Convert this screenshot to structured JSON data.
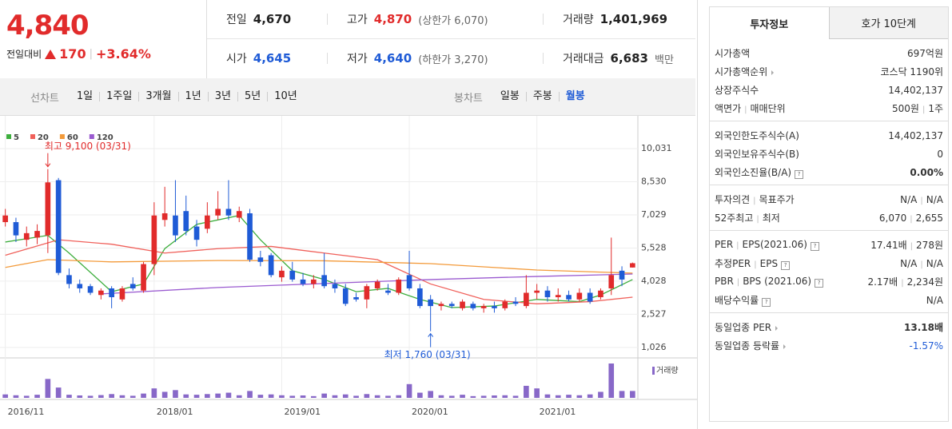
{
  "header": {
    "price": "4,840",
    "change_label": "전일대비",
    "change": "170",
    "change_pct": "+3.64%"
  },
  "quote": [
    [
      {
        "label": "전일",
        "value": "4,670",
        "color": "#222"
      },
      {
        "label": "고가",
        "value": "4,870",
        "note": "(상한가 6,070)",
        "color": "#e12b2b"
      },
      {
        "label": "거래량",
        "value": "1,401,969",
        "color": "#222"
      }
    ],
    [
      {
        "label": "시가",
        "value": "4,645",
        "color": "#1f5bd6"
      },
      {
        "label": "저가",
        "value": "4,640",
        "note": "(하한가 3,270)",
        "color": "#1f5bd6"
      },
      {
        "label": "거래대금",
        "value": "6,683",
        "note": "백만",
        "color": "#222"
      }
    ]
  ],
  "tabs": {
    "line_chart": {
      "label": "선차트",
      "items": [
        "1일",
        "1주일",
        "3개월",
        "1년",
        "3년",
        "5년",
        "10년"
      ]
    },
    "candle_chart": {
      "label": "봉차트",
      "items": [
        "일봉",
        "주봉",
        "월봉"
      ],
      "active": 2
    }
  },
  "chart_data": {
    "type": "candlestick",
    "xlim": [
      -0.5,
      59.5
    ],
    "ylim": [
      660,
      11260
    ],
    "yticks": [
      {
        "value": 10031,
        "label": "10,031"
      },
      {
        "value": 8530,
        "label": "8,530"
      },
      {
        "value": 7029,
        "label": "7,029"
      },
      {
        "value": 5528,
        "label": "5,528"
      },
      {
        "value": 4028,
        "label": "4,028"
      },
      {
        "value": 2527,
        "label": "2,527"
      },
      {
        "value": 1026,
        "label": "1,026"
      }
    ],
    "xticks": [
      {
        "value": 0,
        "label": "2016/11"
      },
      {
        "value": 14,
        "label": "2018/01"
      },
      {
        "value": 26,
        "label": "2019/01"
      },
      {
        "value": 38,
        "label": "2020/01"
      },
      {
        "value": 50,
        "label": "2021/01"
      }
    ],
    "up_color": "#e12b2b",
    "down_color": "#1f5bd6",
    "volume_color": "#8868c8",
    "grid": true,
    "ohlc": [
      [
        6700,
        7300,
        6500,
        7000
      ],
      [
        6700,
        6900,
        5800,
        6100
      ],
      [
        5900,
        6500,
        5600,
        6200
      ],
      [
        6000,
        6600,
        5700,
        6300
      ],
      [
        6100,
        9100,
        5300,
        8500
      ],
      [
        8600,
        8700,
        4300,
        4400
      ],
      [
        4300,
        4600,
        3700,
        3900
      ],
      [
        3900,
        4100,
        3500,
        3700
      ],
      [
        3800,
        3900,
        3400,
        3500
      ],
      [
        3400,
        3700,
        3200,
        3600
      ],
      [
        3700,
        3800,
        2800,
        3300
      ],
      [
        3200,
        3800,
        3100,
        3700
      ],
      [
        3900,
        4200,
        3600,
        3700
      ],
      [
        3600,
        4900,
        3500,
        4800
      ],
      [
        4800,
        7600,
        4300,
        7000
      ],
      [
        6800,
        8300,
        6500,
        7100
      ],
      [
        7000,
        8600,
        5800,
        6100
      ],
      [
        7200,
        7900,
        6100,
        6300
      ],
      [
        6500,
        6800,
        5600,
        5900
      ],
      [
        6400,
        7600,
        6200,
        7000
      ],
      [
        7000,
        8100,
        6800,
        7300
      ],
      [
        7300,
        8600,
        6800,
        7000
      ],
      [
        6900,
        7400,
        6700,
        7200
      ],
      [
        7100,
        7300,
        4900,
        5000
      ],
      [
        5100,
        5400,
        4700,
        4900
      ],
      [
        5200,
        5300,
        4200,
        4300
      ],
      [
        4200,
        4700,
        4000,
        4500
      ],
      [
        4500,
        4900,
        4000,
        4100
      ],
      [
        4100,
        4400,
        3800,
        3900
      ],
      [
        3900,
        4300,
        3700,
        4100
      ],
      [
        4300,
        5300,
        3700,
        3800
      ],
      [
        3900,
        4100,
        3500,
        3700
      ],
      [
        3700,
        3900,
        2900,
        3000
      ],
      [
        3300,
        3500,
        3100,
        3200
      ],
      [
        3200,
        3900,
        2800,
        3800
      ],
      [
        3700,
        4100,
        3600,
        4000
      ],
      [
        3600,
        3900,
        3400,
        3500
      ],
      [
        3500,
        4200,
        3400,
        4100
      ],
      [
        4300,
        5400,
        3600,
        3700
      ],
      [
        3700,
        3900,
        2800,
        2900
      ],
      [
        3200,
        3400,
        1760,
        2900
      ],
      [
        2900,
        3100,
        2700,
        3000
      ],
      [
        3000,
        3100,
        2800,
        2900
      ],
      [
        2800,
        3200,
        2700,
        3100
      ],
      [
        3000,
        3100,
        2700,
        2800
      ],
      [
        2800,
        3000,
        2600,
        2900
      ],
      [
        2900,
        3100,
        2600,
        2800
      ],
      [
        2800,
        3200,
        2700,
        3100
      ],
      [
        3100,
        3300,
        2900,
        3000
      ],
      [
        2900,
        4300,
        2800,
        3500
      ],
      [
        3500,
        3900,
        3200,
        3600
      ],
      [
        3600,
        3800,
        3100,
        3300
      ],
      [
        3300,
        3700,
        3100,
        3400
      ],
      [
        3400,
        3600,
        3100,
        3200
      ],
      [
        3200,
        3700,
        3100,
        3500
      ],
      [
        3500,
        3700,
        3000,
        3100
      ],
      [
        3300,
        3700,
        3200,
        3600
      ],
      [
        3700,
        6000,
        3400,
        4300
      ],
      [
        4500,
        4700,
        3800,
        4100
      ],
      [
        4645,
        4870,
        4640,
        4840
      ]
    ],
    "volume": [
      20,
      15,
      12,
      18,
      110,
      60,
      18,
      14,
      12,
      16,
      22,
      15,
      12,
      25,
      55,
      35,
      45,
      20,
      18,
      22,
      25,
      30,
      15,
      40,
      18,
      20,
      15,
      12,
      14,
      10,
      25,
      15,
      20,
      12,
      22,
      15,
      12,
      15,
      80,
      30,
      40,
      15,
      12,
      18,
      10,
      12,
      14,
      15,
      12,
      70,
      55,
      20,
      15,
      18,
      15,
      20,
      35,
      200,
      40,
      40
    ],
    "volume_label": "거래량",
    "series": [
      {
        "name": "5",
        "color": "#3dae3d",
        "x": [
          0,
          4,
          6,
          10,
          13,
          15,
          18,
          22,
          24,
          27,
          30,
          33,
          36,
          39,
          42,
          46,
          50,
          54,
          56,
          59
        ],
        "values": [
          5800,
          6100,
          5300,
          3550,
          3900,
          5500,
          6600,
          7000,
          5900,
          4500,
          4100,
          3550,
          3700,
          3200,
          2830,
          2900,
          3200,
          3100,
          3400,
          4100
        ]
      },
      {
        "name": "20",
        "color": "#f0605a",
        "x": [
          0,
          5,
          10,
          15,
          20,
          25,
          30,
          35,
          40,
          45,
          50,
          55,
          59
        ],
        "values": [
          5200,
          5900,
          5700,
          5300,
          5500,
          5600,
          5300,
          5000,
          3900,
          3200,
          3000,
          3100,
          3300
        ]
      },
      {
        "name": "60",
        "color": "#f39a3a",
        "x": [
          0,
          4,
          10,
          20,
          30,
          40,
          50,
          59
        ],
        "values": [
          4650,
          5000,
          4900,
          4960,
          4950,
          4820,
          4530,
          4390
        ]
      },
      {
        "name": "120",
        "color": "#9a5ad0",
        "x": [
          9,
          20,
          30,
          40,
          50,
          59
        ],
        "values": [
          3450,
          3740,
          3920,
          4100,
          4240,
          4350
        ]
      }
    ],
    "annotations": [
      {
        "text": "최고 9,100 (03/31)",
        "x": 4,
        "value": 9100,
        "color": "#e12b2b"
      },
      {
        "text": "최저 1,760 (03/31)",
        "x": 40,
        "value": 1760,
        "color": "#1f5bd6"
      }
    ]
  },
  "info_panel": {
    "tabs": [
      "투자정보",
      "호가 10단계"
    ],
    "sections": [
      [
        {
          "label": [
            "시가총액"
          ],
          "value": [
            "697억원"
          ]
        },
        {
          "label": [
            "시가총액순위"
          ],
          "value": [
            "코스닥 1190위"
          ],
          "link": true
        },
        {
          "label": [
            "상장주식수"
          ],
          "value": [
            "14,402,137"
          ]
        },
        {
          "label": [
            "액면가",
            "매매단위"
          ],
          "value": [
            "500원",
            "1주"
          ]
        }
      ],
      [
        {
          "label": [
            "외국인한도주식수(A)"
          ],
          "value": [
            "14,402,137"
          ]
        },
        {
          "label": [
            "외국인보유주식수(B)"
          ],
          "value": [
            "0"
          ]
        },
        {
          "label": [
            "외국인소진율(B/A)"
          ],
          "value": [
            "0.00%"
          ],
          "help": true,
          "bold": true
        }
      ],
      [
        {
          "label": [
            "투자의견",
            "목표주가"
          ],
          "value": [
            "N/A",
            "N/A"
          ]
        },
        {
          "label": [
            "52주최고",
            "최저"
          ],
          "value": [
            "6,070",
            "2,655"
          ]
        }
      ],
      [
        {
          "label": [
            "PER",
            "EPS(2021.06)"
          ],
          "value": [
            "17.41배",
            "278원"
          ],
          "help": true
        },
        {
          "label": [
            "추정PER",
            "EPS"
          ],
          "value": [
            "N/A",
            "N/A"
          ],
          "help": true
        },
        {
          "label": [
            "PBR",
            "BPS (2021.06)"
          ],
          "value": [
            "2.17배",
            "2,234원"
          ],
          "help": true
        },
        {
          "label": [
            "배당수익률"
          ],
          "value": [
            "N/A"
          ],
          "help": true
        }
      ],
      [
        {
          "label": [
            "동일업종 PER"
          ],
          "value": [
            "13.18배"
          ],
          "link": true,
          "bold": true
        },
        {
          "label": [
            "동일업종 등락률"
          ],
          "value": [
            "-1.57%"
          ],
          "link": true,
          "color": "#1f5bd6"
        }
      ]
    ]
  }
}
